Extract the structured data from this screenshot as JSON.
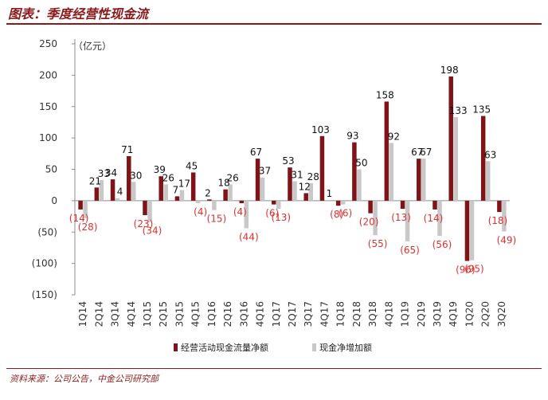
{
  "header": {
    "title": "图表：季度经营性现金流"
  },
  "footer": {
    "source": "资料来源：公司公告，中金公司研究部"
  },
  "colors": {
    "series1": "#7f1418",
    "series2": "#c8c8c8",
    "negative_label": "#e0302e",
    "positive_label": "#111111",
    "title": "#8b1a1a"
  },
  "chart_data": {
    "type": "bar",
    "unit": "（亿元）",
    "categories": [
      "1Q14",
      "2Q14",
      "3Q14",
      "4Q14",
      "1Q15",
      "2Q15",
      "3Q15",
      "4Q15",
      "1Q16",
      "2Q16",
      "3Q16",
      "4Q16",
      "1Q17",
      "2Q17",
      "3Q17",
      "4Q17",
      "1Q18",
      "2Q18",
      "3Q18",
      "4Q18",
      "1Q19",
      "2Q19",
      "3Q19",
      "4Q19",
      "1Q20",
      "2Q20",
      "3Q20"
    ],
    "series": [
      {
        "name": "经营活动现金流量净额",
        "values": [
          -14,
          21,
          34,
          71,
          -23,
          39,
          7,
          45,
          2,
          18,
          -4,
          67,
          -6,
          53,
          12,
          103,
          -8,
          93,
          -20,
          158,
          -13,
          67,
          -14,
          198,
          -96,
          135,
          -18
        ]
      },
      {
        "name": "现金净增加额",
        "values": [
          -28,
          33,
          4,
          30,
          -34,
          26,
          17,
          -4,
          -15,
          26,
          -44,
          37,
          -13,
          31,
          28,
          1,
          -6,
          50,
          -55,
          92,
          -65,
          67,
          -56,
          133,
          -95,
          63,
          -49
        ]
      }
    ],
    "data_labels": {
      "series1": [
        "(14)",
        "21",
        "34",
        "71",
        "(23)",
        "39",
        "7",
        "45",
        "2",
        "18",
        "(4)",
        "67",
        "(6)",
        "53",
        "12",
        "103",
        "(8)",
        "93",
        "(20)",
        "158",
        "(13)",
        "67",
        "(14)",
        "198",
        "(96)",
        "135",
        "(18)"
      ],
      "series2": [
        "(28)",
        "33",
        "4",
        "30",
        "(34)",
        "26",
        "17",
        "(4)",
        "(15)",
        "26",
        "(44)",
        "37",
        "(13)",
        "31",
        "28",
        "1",
        "(6)",
        "50",
        "(55)",
        "92",
        "(65)",
        "67",
        "(56)",
        "133",
        "(95)",
        "63",
        "(49)"
      ]
    },
    "y_ticks": [
      250,
      200,
      150,
      100,
      50,
      0,
      -50,
      -100,
      -150
    ],
    "y_tick_labels": [
      "250",
      "200",
      "150",
      "100",
      "50",
      "0",
      "(50)",
      "(100)",
      "(150)"
    ],
    "ylim": [
      -150,
      250
    ],
    "grid": false,
    "legend_position": "bottom"
  }
}
